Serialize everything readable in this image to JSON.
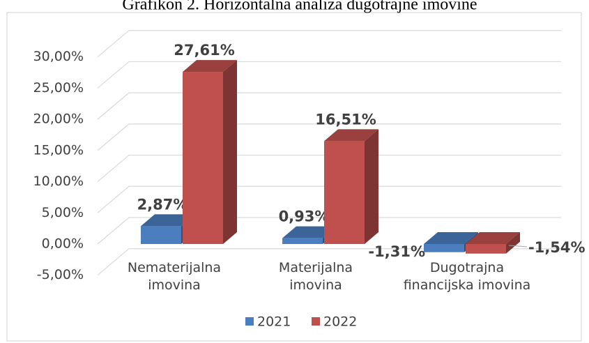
{
  "chart_data": {
    "type": "bar3d",
    "title": "Grafikon 2. Horizontalna analiza dugotrajne imovine",
    "categories": [
      "Nematerijalna imovina",
      "Materijalna imovina",
      "Dugotrajna financijska imovina"
    ],
    "series": [
      {
        "name": "2021",
        "color": "#4a7ebf",
        "values": [
          2.87,
          0.93,
          -1.31
        ],
        "value_labels": [
          "2,87%",
          "0,93%",
          "-1,31%"
        ]
      },
      {
        "name": "2022",
        "color": "#c0504d",
        "values": [
          27.61,
          16.51,
          -1.54
        ],
        "value_labels": [
          "27,61%",
          "16,51%",
          "-1,54%"
        ]
      }
    ],
    "ylim": [
      -5,
      30
    ],
    "yticks": [
      {
        "value": -5,
        "label": "-5,00%"
      },
      {
        "value": 0,
        "label": "0,00%"
      },
      {
        "value": 5,
        "label": "5,00%"
      },
      {
        "value": 10,
        "label": "10,00%"
      },
      {
        "value": 15,
        "label": "15,00%"
      },
      {
        "value": 20,
        "label": "20,00%"
      },
      {
        "value": 25,
        "label": "25,00%"
      },
      {
        "value": 30,
        "label": "30,00%"
      }
    ],
    "grid": true,
    "legend": "bottom"
  }
}
